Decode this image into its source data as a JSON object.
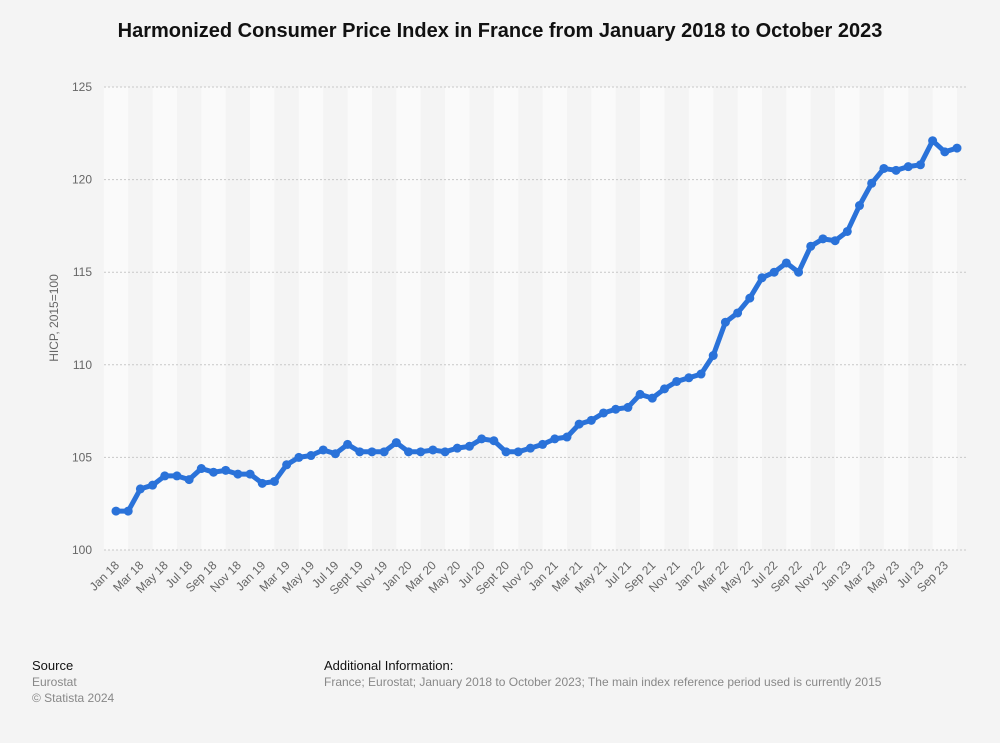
{
  "title": "Harmonized Consumer Price Index in France from January 2018 to October 2023",
  "footer": {
    "source_heading": "Source",
    "source_name": "Eurostat",
    "copyright": "© Statista 2024",
    "info_heading": "Additional Information:",
    "info_text": "France; Eurostat; January 2018 to October 2023; The main index reference period used is currently 2015"
  },
  "colors": {
    "line": "#2a72d9",
    "background": "#f4f4f4",
    "band_light": "#fafafa",
    "grid": "#c8c8c8",
    "axis_text": "#666666"
  },
  "chart_data": {
    "type": "line",
    "title": "",
    "xlabel": "",
    "ylabel": "HICP, 2015=100",
    "ylim": [
      100,
      125
    ],
    "yticks": [
      100,
      105,
      110,
      115,
      120,
      125
    ],
    "grid": true,
    "x": [
      "Jan 18",
      "Feb 18",
      "Mar 18",
      "Apr 18",
      "May 18",
      "Jun 18",
      "Jul 18",
      "Aug 18",
      "Sep 18",
      "Oct 18",
      "Nov 18",
      "Dec 18",
      "Jan 19",
      "Feb 19",
      "Mar 19",
      "Apr 19",
      "May 19",
      "Jun 19",
      "Jul 19",
      "Aug 19",
      "Sept 19",
      "Oct 19",
      "Nov 19",
      "Dec 19",
      "Jan 20",
      "Feb 20",
      "Mar 20",
      "Apr 20",
      "May 20",
      "Jun 20",
      "Jul 20",
      "Aug 20",
      "Sept 20",
      "Oct 20",
      "Nov 20",
      "Dec 20",
      "Jan 21",
      "Feb 21",
      "Mar 21",
      "Apr 21",
      "May 21",
      "Jun 21",
      "Jul 21",
      "Aug 21",
      "Sep 21",
      "Oct 21",
      "Nov 21",
      "Dec 21",
      "Jan 22",
      "Feb 22",
      "Mar 22",
      "Apr 22",
      "May 22",
      "Jun 22",
      "Jul 22",
      "Aug 22",
      "Sep 22",
      "Oct 22",
      "Nov 22",
      "Dec 22",
      "Jan 23",
      "Feb 23",
      "Mar 23",
      "Apr 23",
      "May 23",
      "Jun 23",
      "Jul 23",
      "Aug 23",
      "Sep 23",
      "Oct 23"
    ],
    "tick_labels": [
      "Jan 18",
      "Mar 18",
      "May 18",
      "Jul 18",
      "Sep 18",
      "Nov 18",
      "Jan 19",
      "Mar 19",
      "May 19",
      "Jul 19",
      "Sept 19",
      "Nov 19",
      "Jan 20",
      "Mar 20",
      "May 20",
      "Jul 20",
      "Sept 20",
      "Nov 20",
      "Jan 21",
      "Mar 21",
      "May 21",
      "Jul 21",
      "Sep 21",
      "Nov 21",
      "Jan 22",
      "Mar 22",
      "May 22",
      "Jul 22",
      "Sep 22",
      "Nov 22",
      "Jan 23",
      "Mar 23",
      "May 23",
      "Jul 23",
      "Sep 23"
    ],
    "series": [
      {
        "values": [
          102.1,
          102.1,
          103.3,
          103.5,
          104.0,
          104.0,
          103.8,
          104.4,
          104.2,
          104.3,
          104.1,
          104.1,
          103.6,
          103.7,
          104.6,
          105.0,
          105.1,
          105.4,
          105.2,
          105.7,
          105.3,
          105.3,
          105.3,
          105.8,
          105.3,
          105.3,
          105.4,
          105.3,
          105.5,
          105.6,
          106.0,
          105.9,
          105.3,
          105.3,
          105.5,
          105.7,
          106.0,
          106.1,
          106.8,
          107.0,
          107.4,
          107.6,
          107.7,
          108.4,
          108.2,
          108.7,
          109.1,
          109.3,
          109.5,
          110.5,
          112.3,
          112.8,
          113.6,
          114.7,
          115.0,
          115.5,
          115.0,
          116.4,
          116.8,
          116.7,
          117.2,
          118.6,
          119.8,
          120.6,
          120.5,
          120.7,
          120.8,
          122.1,
          121.5,
          121.7
        ]
      }
    ]
  }
}
